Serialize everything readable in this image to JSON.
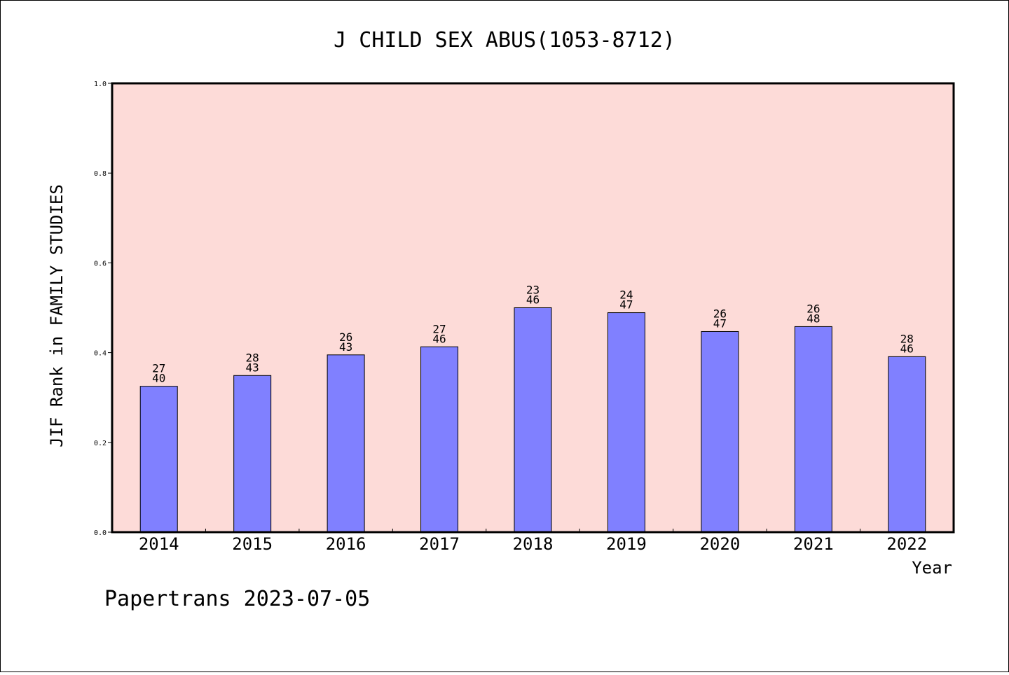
{
  "chart_data": {
    "type": "bar",
    "title": "J CHILD SEX ABUS(1053-8712)",
    "xlabel": "Year",
    "ylabel": "JIF Rank in FAMILY STUDIES",
    "ylim": [
      0,
      1.0
    ],
    "yticks": [
      "0.0",
      "0.2",
      "0.4",
      "0.6",
      "0.8",
      "1.0"
    ],
    "categories": [
      "2014",
      "2015",
      "2016",
      "2017",
      "2018",
      "2019",
      "2020",
      "2021",
      "2022"
    ],
    "values": [
      0.325,
      0.349,
      0.395,
      0.413,
      0.5,
      0.489,
      0.447,
      0.458,
      0.391
    ],
    "bar_labels": [
      [
        "27",
        "40"
      ],
      [
        "28",
        "43"
      ],
      [
        "26",
        "43"
      ],
      [
        "27",
        "46"
      ],
      [
        "23",
        "46"
      ],
      [
        "24",
        "47"
      ],
      [
        "26",
        "47"
      ],
      [
        "26",
        "48"
      ],
      [
        "28",
        "46"
      ]
    ],
    "grid": false,
    "colors": {
      "plot_background": "#fddbd8",
      "bar": "#8080ff"
    }
  },
  "footer": "Papertrans 2023-07-05"
}
